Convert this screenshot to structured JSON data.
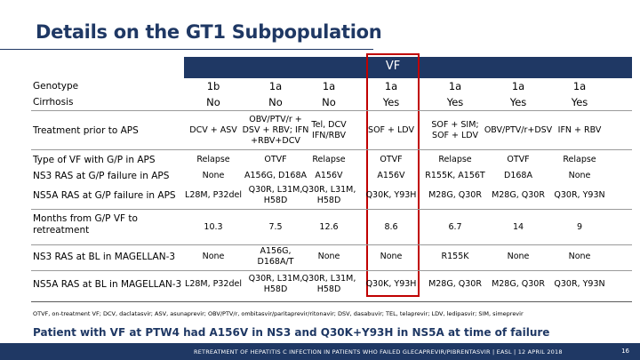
{
  "title": "Details on the GT1 Subpopulation",
  "vf_label": "VF",
  "rows": [
    {
      "label": "Genotype",
      "values": [
        "1b",
        "1a",
        "1a",
        "1a",
        "1a",
        "1a",
        "1a"
      ]
    },
    {
      "label": "Cirrhosis",
      "values": [
        "No",
        "No",
        "No",
        "Yes",
        "Yes",
        "Yes",
        "Yes"
      ]
    },
    {
      "label": "Treatment prior to APS",
      "values": [
        "DCV + ASV",
        "OBV/PTV/r +\nDSV + RBV; IFN\n+RBV+DCV",
        "Tel, DCV\nIFN/RBV",
        "SOF + LDV",
        "SOF + SIM;\nSOF + LDV",
        "OBV/PTV/r+DSV",
        "IFN + RBV"
      ]
    },
    {
      "label": "Type of VF with G/P in APS",
      "values": [
        "Relapse",
        "OTVF",
        "Relapse",
        "OTVF",
        "Relapse",
        "OTVF",
        "Relapse"
      ]
    },
    {
      "label": "NS3 RAS at G/P failure in APS",
      "values": [
        "None",
        "A156G, D168A",
        "A156V",
        "A156V",
        "R155K, A156T",
        "D168A",
        "None"
      ]
    },
    {
      "label": "NS5A RAS at G/P failure in APS",
      "values": [
        "L28M, P32del",
        "Q30R, L31M,\nH58D",
        "Q30R, L31M,\nH58D",
        "Q30K, Y93H",
        "M28G, Q30R",
        "M28G, Q30R",
        "Q30R, Y93N"
      ]
    },
    {
      "label": "Months from G/P VF to\nretreatment",
      "values": [
        "10.3",
        "7.5",
        "12.6",
        "8.6",
        "6.7",
        "14",
        "9"
      ]
    },
    {
      "label": "NS3 RAS at BL in MAGELLAN-3",
      "values": [
        "None",
        "A156G,\nD168A/T",
        "None",
        "None",
        "R155K",
        "None",
        "None"
      ]
    },
    {
      "label": "NS5A RAS at BL in MAGELLAN-3",
      "values": [
        "L28M, P32del",
        "Q30R, L31M,\nH58D",
        "Q30R, L31M,\nH58D",
        "Q30K, Y93H",
        "M28G, Q30R",
        "M28G, Q30R",
        "Q30R, Y93N"
      ]
    }
  ],
  "footnote": "OTVF, on-treatment VF; DCV, daclatasvir; ASV, asunaprevir; OBV/PTV/r, ombitasvir/paritaprevir/ritonavir; DSV, dasabuvir; TEL, telaprevir; LDV, ledipasvir; SIM, simeprevir",
  "conclusion": "Patient with VF at PTW4 had A156V in NS3 and Q30K+Y93H in NS5A at time of failure",
  "footer": "RETREATMENT OF HEPATITIS C INFECTION IN PATIENTS WHO FAILED GLECAPREVIR/PIBRENTASVIR | EASL | 12 APRIL 2018",
  "page_number": "16"
}
